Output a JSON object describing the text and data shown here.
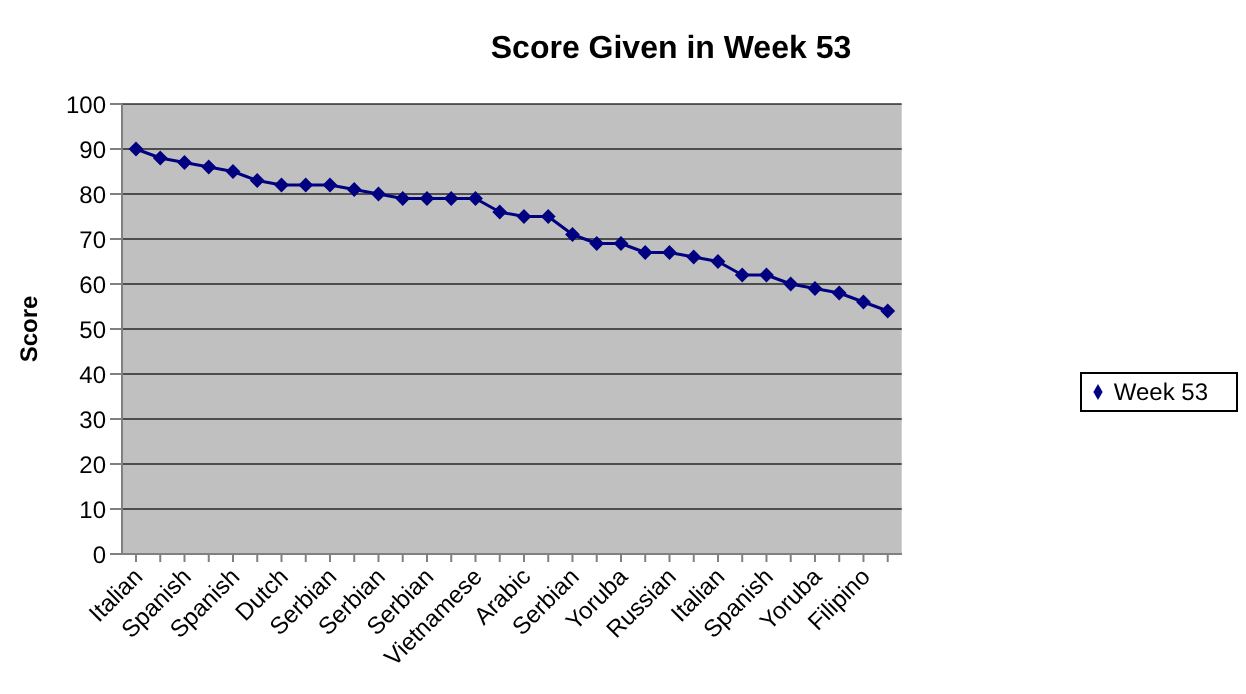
{
  "chart_data": {
    "type": "line",
    "title": "Score Given in Week 53",
    "ylabel": "Score",
    "categories": [
      "Italian",
      null,
      "Spanish",
      null,
      "Spanish",
      null,
      "Dutch",
      null,
      "Serbian",
      null,
      "Serbian",
      null,
      "Serbian",
      null,
      "Vietnamese",
      null,
      "Arabic",
      null,
      "Serbian",
      null,
      "Yoruba",
      null,
      "Russian",
      null,
      "Italian",
      null,
      "Spanish",
      null,
      "Yoruba",
      null,
      "Filipino",
      null
    ],
    "series": [
      {
        "name": "Week 53",
        "color": "#000080",
        "values": [
          90,
          88,
          87,
          86,
          85,
          83,
          82,
          82,
          82,
          81,
          80,
          79,
          79,
          79,
          79,
          76,
          75,
          75,
          71,
          69,
          69,
          67,
          67,
          66,
          65,
          62,
          62,
          60,
          59,
          58,
          56,
          54
        ]
      }
    ],
    "ylim": [
      0,
      100
    ],
    "yticks": [
      0,
      10,
      20,
      30,
      40,
      50,
      60,
      70,
      80,
      90,
      100
    ],
    "grid": "y",
    "legend": "right",
    "marker": "diamond",
    "line_style": "solid"
  }
}
